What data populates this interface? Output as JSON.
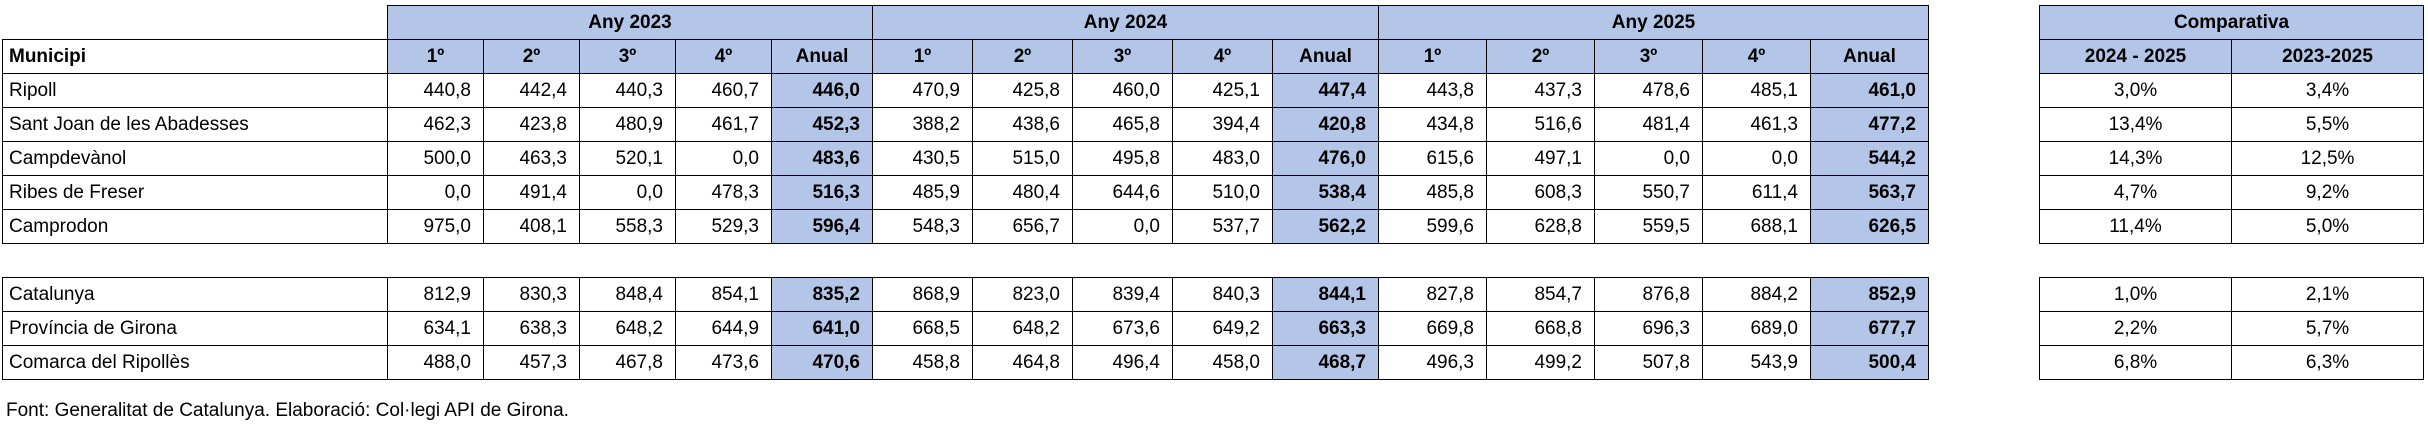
{
  "table": {
    "groups": [
      "Any 2023",
      "Any 2024",
      "Any 2025"
    ],
    "column_header": "Municipi",
    "subheaders": [
      [
        "1º",
        "2º",
        "3º",
        "4º",
        "Anual"
      ],
      [
        "1º",
        "2º",
        "3º",
        "4º",
        "Anual"
      ],
      [
        "1º",
        "2º",
        "3º",
        "4º",
        "Anual"
      ]
    ],
    "rows": [
      {
        "name": "Ripoll",
        "values": [
          "440,8",
          "442,4",
          "440,3",
          "460,7",
          "446,0",
          "470,9",
          "425,8",
          "460,0",
          "425,1",
          "447,4",
          "443,8",
          "437,3",
          "478,6",
          "485,1",
          "461,0"
        ]
      },
      {
        "name": "Sant Joan de les Abadesses",
        "values": [
          "462,3",
          "423,8",
          "480,9",
          "461,7",
          "452,3",
          "388,2",
          "438,6",
          "465,8",
          "394,4",
          "420,8",
          "434,8",
          "516,6",
          "481,4",
          "461,3",
          "477,2"
        ]
      },
      {
        "name": "Campdevànol",
        "values": [
          "500,0",
          "463,3",
          "520,1",
          "0,0",
          "483,6",
          "430,5",
          "515,0",
          "495,8",
          "483,0",
          "476,0",
          "615,6",
          "497,1",
          "0,0",
          "0,0",
          "544,2"
        ]
      },
      {
        "name": "Ribes de Freser",
        "values": [
          "0,0",
          "491,4",
          "0,0",
          "478,3",
          "516,3",
          "485,9",
          "480,4",
          "644,6",
          "510,0",
          "538,4",
          "485,8",
          "608,3",
          "550,7",
          "611,4",
          "563,7"
        ]
      },
      {
        "name": "Camprodon",
        "values": [
          "975,0",
          "408,1",
          "558,3",
          "529,3",
          "596,4",
          "548,3",
          "656,7",
          "0,0",
          "537,7",
          "562,2",
          "599,6",
          "628,8",
          "559,5",
          "688,1",
          "626,5"
        ]
      }
    ],
    "summary_rows": [
      {
        "name": "Catalunya",
        "values": [
          "812,9",
          "830,3",
          "848,4",
          "854,1",
          "835,2",
          "868,9",
          "823,0",
          "839,4",
          "840,3",
          "844,1",
          "827,8",
          "854,7",
          "876,8",
          "884,2",
          "852,9"
        ]
      },
      {
        "name": "Província de Girona",
        "values": [
          "634,1",
          "638,3",
          "648,2",
          "644,9",
          "641,0",
          "668,5",
          "648,2",
          "673,6",
          "649,2",
          "663,3",
          "669,8",
          "668,8",
          "696,3",
          "689,0",
          "677,7"
        ]
      },
      {
        "name": "Comarca del Ripollès",
        "values": [
          "488,0",
          "457,3",
          "467,8",
          "473,6",
          "470,6",
          "458,8",
          "464,8",
          "496,4",
          "458,0",
          "468,7",
          "496,3",
          "499,2",
          "507,8",
          "543,9",
          "500,4"
        ]
      }
    ]
  },
  "comparison": {
    "title": "Comparativa",
    "columns": [
      "2024 - 2025",
      "2023-2025"
    ],
    "rows": [
      [
        "3,0%",
        "3,4%"
      ],
      [
        "13,4%",
        "5,5%"
      ],
      [
        "14,3%",
        "12,5%"
      ],
      [
        "4,7%",
        "9,2%"
      ],
      [
        "11,4%",
        "5,0%"
      ]
    ],
    "summary_rows": [
      [
        "1,0%",
        "2,1%"
      ],
      [
        "2,2%",
        "5,7%"
      ],
      [
        "6,8%",
        "6,3%"
      ]
    ]
  },
  "footnote": "Font: Generalitat de Catalunya. Elaboració: Col·legi API de Girona."
}
